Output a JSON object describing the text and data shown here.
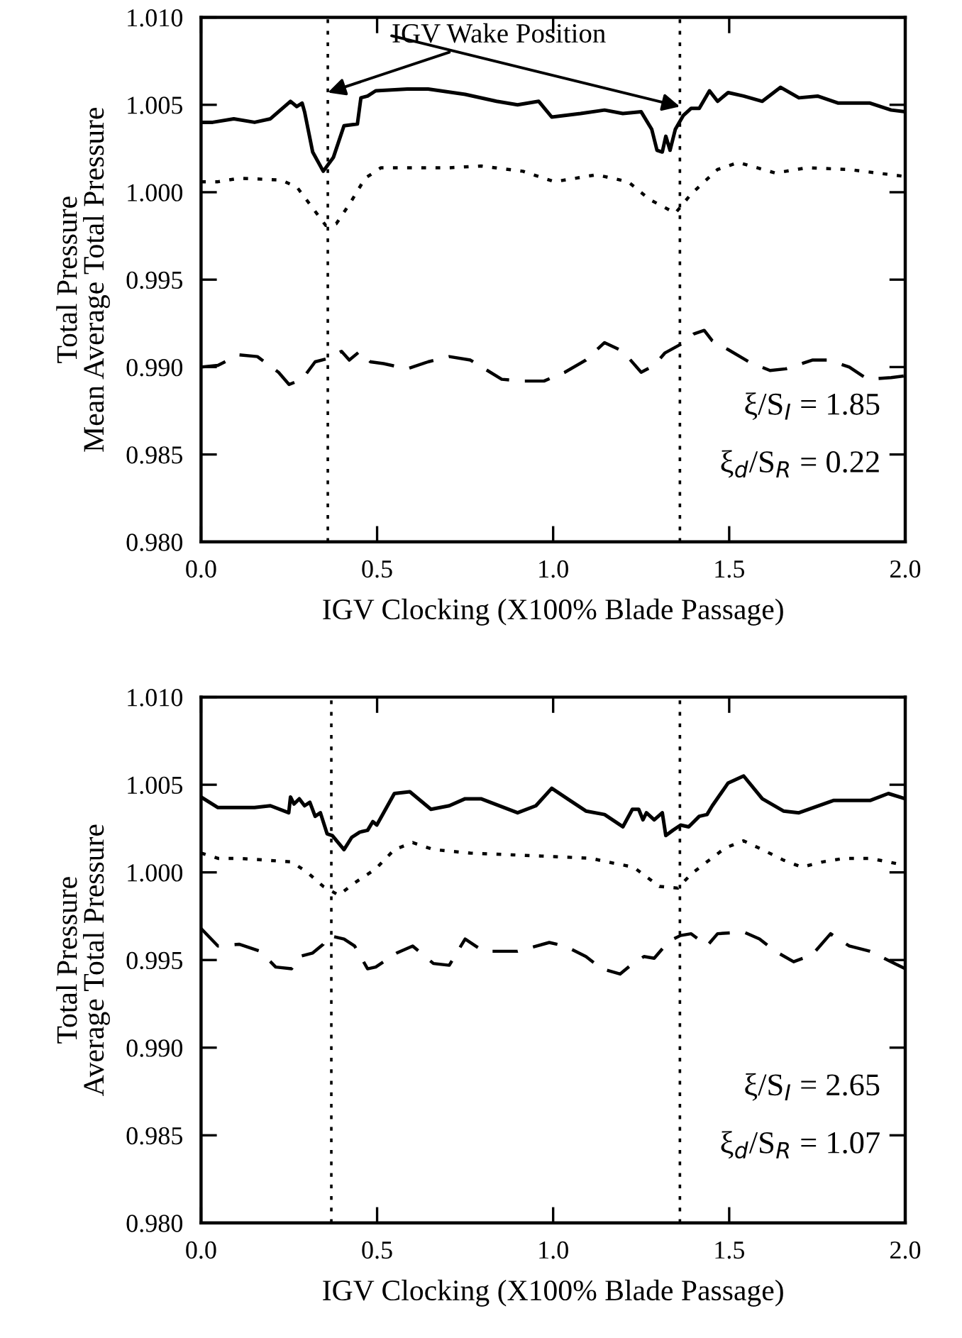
{
  "chart_data": [
    {
      "type": "line",
      "xlabel": "IGV Clocking (X100% Blade Passage)",
      "ylabel": "Total Pressure\nMean Average Total Pressure",
      "xlim": [
        0,
        2
      ],
      "ylim": [
        0.98,
        1.01
      ],
      "xticks": [
        {
          "value": 0,
          "label": "0.0"
        },
        {
          "value": 0.5,
          "label": "0.5"
        },
        {
          "value": 1,
          "label": "1.0"
        },
        {
          "value": 1.5,
          "label": "1.5"
        },
        {
          "value": 2,
          "label": "2.0"
        }
      ],
      "yticks": [
        {
          "value": 0.98,
          "label": "0.980"
        },
        {
          "value": 0.985,
          "label": "0.985"
        },
        {
          "value": 0.99,
          "label": "0.990"
        },
        {
          "value": 0.995,
          "label": "0.995"
        },
        {
          "value": 1.0,
          "label": "1.000"
        },
        {
          "value": 1.005,
          "label": "1.005"
        },
        {
          "value": 1.01,
          "label": "1.010"
        }
      ],
      "series": [
        {
          "color": "#000000",
          "line_style": "solid",
          "x": [
            0,
            0.033,
            0.093,
            0.152,
            0.197,
            0.254,
            0.272,
            0.287,
            0.294,
            0.317,
            0.347,
            0.376,
            0.406,
            0.444,
            0.454,
            0.473,
            0.496,
            0.586,
            0.645,
            0.75,
            0.839,
            0.899,
            0.959,
            0.996,
            1.078,
            1.146,
            1.198,
            1.25,
            1.28,
            1.295,
            1.31,
            1.32,
            1.332,
            1.347,
            1.37,
            1.392,
            1.415,
            1.444,
            1.467,
            1.497,
            1.541,
            1.594,
            1.646,
            1.698,
            1.751,
            1.81,
            1.9,
            1.96,
            2.0
          ],
          "values": [
            1.004,
            1.004,
            1.0042,
            1.004,
            1.0042,
            1.0052,
            1.0049,
            1.0051,
            1.0046,
            1.0023,
            1.0012,
            1.002,
            1.0038,
            1.0039,
            1.0054,
            1.0055,
            1.0058,
            1.0059,
            1.0059,
            1.0056,
            1.0052,
            1.005,
            1.0052,
            1.0043,
            1.0045,
            1.0047,
            1.0045,
            1.0046,
            1.0036,
            1.0024,
            1.0023,
            1.0032,
            1.0024,
            1.0036,
            1.0044,
            1.0048,
            1.0048,
            1.0058,
            1.0052,
            1.0057,
            1.0055,
            1.0052,
            1.006,
            1.0054,
            1.0055,
            1.0051,
            1.0051,
            1.0047,
            1.0046
          ]
        },
        {
          "color": "#000000",
          "line_style": "dotted",
          "x": [
            0,
            0.048,
            0.108,
            0.227,
            0.272,
            0.317,
            0.354,
            0.384,
            0.421,
            0.466,
            0.511,
            0.586,
            0.705,
            0.795,
            0.914,
            1.004,
            1.123,
            1.213,
            1.273,
            1.347,
            1.392,
            1.467,
            1.526,
            1.579,
            1.631,
            1.721,
            1.84,
            2.0
          ],
          "values": [
            1.0006,
            1.0006,
            1.0008,
            1.0007,
            1.0003,
            0.9991,
            0.9981,
            0.9982,
            0.9993,
            1.0008,
            1.0014,
            1.0014,
            1.0014,
            1.0015,
            1.0012,
            1.0006,
            1.001,
            1.0006,
            0.9996,
            0.9988,
            0.9999,
            1.0013,
            1.0017,
            1.0014,
            1.0011,
            1.0014,
            1.0013,
            1.0009
          ]
        },
        {
          "color": "#000000",
          "line_style": "dashed",
          "x": [
            0,
            0.048,
            0.108,
            0.16,
            0.22,
            0.25,
            0.287,
            0.324,
            0.362,
            0.399,
            0.421,
            0.451,
            0.481,
            0.518,
            0.586,
            0.645,
            0.705,
            0.765,
            0.854,
            0.914,
            0.974,
            1.033,
            1.093,
            1.146,
            1.198,
            1.25,
            1.287,
            1.317,
            1.362,
            1.4,
            1.429,
            1.452,
            1.497,
            1.556,
            1.616,
            1.661,
            1.736,
            1.781,
            1.841,
            1.893,
            1.96,
            2.0
          ],
          "values": [
            0.99,
            0.9901,
            0.9907,
            0.9906,
            0.9897,
            0.989,
            0.9893,
            0.9903,
            0.9905,
            0.9909,
            0.9904,
            0.9909,
            0.9903,
            0.9902,
            0.9899,
            0.9903,
            0.9906,
            0.9904,
            0.9893,
            0.9892,
            0.9892,
            0.9897,
            0.9904,
            0.9914,
            0.9909,
            0.9897,
            0.9901,
            0.9908,
            0.9913,
            0.9919,
            0.9921,
            0.9915,
            0.991,
            0.9903,
            0.9898,
            0.9899,
            0.9904,
            0.9904,
            0.99,
            0.9893,
            0.9894,
            0.9895
          ]
        }
      ],
      "ref_lines": [
        {
          "axis": "x",
          "value": 0.36,
          "line_style": "dotted",
          "color": "#000000"
        },
        {
          "axis": "x",
          "value": 1.36,
          "line_style": "dotted",
          "color": "#000000"
        }
      ],
      "annotations": [
        {
          "text": "IGV Wake Position",
          "x": 0.36,
          "y": 1.0057
        },
        "ξ/S$_{I}$ = 1.85",
        "ξ$_{d}$/S$_{R}$ = 0.22"
      ]
    },
    {
      "type": "line",
      "xlabel": "IGV Clocking (X100% Blade Passage)",
      "ylabel": "Total Pressure\nAverage Total Pressure",
      "xlim": [
        0,
        2
      ],
      "ylim": [
        0.98,
        1.01
      ],
      "xticks": [
        {
          "value": 0,
          "label": "0.0"
        },
        {
          "value": 0.5,
          "label": "0.5"
        },
        {
          "value": 1,
          "label": "1.0"
        },
        {
          "value": 1.5,
          "label": "1.5"
        },
        {
          "value": 2,
          "label": "2.0"
        }
      ],
      "yticks": [
        {
          "value": 0.98,
          "label": "0.980"
        },
        {
          "value": 0.985,
          "label": "0.985"
        },
        {
          "value": 0.99,
          "label": "0.990"
        },
        {
          "value": 0.995,
          "label": "0.995"
        },
        {
          "value": 1.0,
          "label": "1.000"
        },
        {
          "value": 1.005,
          "label": "1.005"
        },
        {
          "value": 1.01,
          "label": "1.010"
        }
      ],
      "series": [
        {
          "color": "#000000",
          "line_style": "solid",
          "x": [
            0,
            0.048,
            0.152,
            0.197,
            0.249,
            0.254,
            0.264,
            0.279,
            0.294,
            0.309,
            0.324,
            0.339,
            0.358,
            0.373,
            0.406,
            0.428,
            0.451,
            0.473,
            0.488,
            0.499,
            0.549,
            0.593,
            0.653,
            0.705,
            0.75,
            0.795,
            0.899,
            0.951,
            0.996,
            1.048,
            1.093,
            1.146,
            1.198,
            1.225,
            1.243,
            1.255,
            1.265,
            1.287,
            1.31,
            1.32,
            1.34,
            1.362,
            1.385,
            1.415,
            1.437,
            1.452,
            1.497,
            1.541,
            1.594,
            1.654,
            1.698,
            1.796,
            1.9,
            1.952,
            2.0
          ],
          "values": [
            1.0043,
            1.0037,
            1.0037,
            1.0038,
            1.0034,
            1.0043,
            1.0039,
            1.0042,
            1.0038,
            1.004,
            1.0032,
            1.0034,
            1.0022,
            1.0021,
            1.0013,
            1.002,
            1.0023,
            1.0024,
            1.0029,
            1.0027,
            1.0045,
            1.0046,
            1.0036,
            1.0038,
            1.0042,
            1.0042,
            1.0034,
            1.0038,
            1.0048,
            1.0041,
            1.0035,
            1.0033,
            1.0026,
            1.0036,
            1.0036,
            1.003,
            1.0034,
            1.003,
            1.0034,
            1.0021,
            1.0024,
            1.0027,
            1.0026,
            1.0032,
            1.0033,
            1.0038,
            1.0051,
            1.0055,
            1.0042,
            1.0035,
            1.0034,
            1.0041,
            1.0041,
            1.0045,
            1.0042
          ]
        },
        {
          "color": "#000000",
          "line_style": "dotted",
          "x": [
            0,
            0.048,
            0.108,
            0.257,
            0.302,
            0.347,
            0.391,
            0.436,
            0.496,
            0.549,
            0.601,
            0.66,
            0.765,
            0.884,
            1.004,
            1.108,
            1.153,
            1.228,
            1.302,
            1.354,
            1.392,
            1.437,
            1.489,
            1.541,
            1.594,
            1.654,
            1.706,
            1.766,
            1.826,
            1.9,
            2.0
          ],
          "values": [
            1.0011,
            1.0008,
            1.0008,
            1.0006,
            1.0,
            0.9992,
            0.9987,
            0.9994,
            1.0002,
            1.0013,
            1.0017,
            1.0013,
            1.0011,
            1.001,
            1.0009,
            1.0008,
            1.0006,
            1.0003,
            0.9992,
            0.9991,
            0.9999,
            1.0006,
            1.0014,
            1.0018,
            1.0013,
            1.0007,
            1.0003,
            1.0006,
            1.0008,
            1.0008,
            1.0004
          ]
        },
        {
          "color": "#000000",
          "line_style": "dashed",
          "x": [
            0,
            0.048,
            0.108,
            0.168,
            0.212,
            0.257,
            0.279,
            0.317,
            0.347,
            0.362,
            0.406,
            0.436,
            0.473,
            0.496,
            0.556,
            0.601,
            0.66,
            0.705,
            0.75,
            0.802,
            0.899,
            0.989,
            1.033,
            1.093,
            1.138,
            1.19,
            1.22,
            1.258,
            1.287,
            1.317,
            1.332,
            1.362,
            1.392,
            1.437,
            1.467,
            1.541,
            1.586,
            1.631,
            1.683,
            1.736,
            1.788,
            1.841,
            1.9,
            1.96,
            2.0
          ],
          "values": [
            0.9968,
            0.9958,
            0.9959,
            0.9955,
            0.9946,
            0.9945,
            0.9952,
            0.9954,
            0.9959,
            0.9964,
            0.9962,
            0.9958,
            0.9945,
            0.9946,
            0.9954,
            0.9958,
            0.9948,
            0.9947,
            0.9962,
            0.9955,
            0.9955,
            0.996,
            0.9958,
            0.9952,
            0.9945,
            0.9942,
            0.9947,
            0.9952,
            0.9951,
            0.9958,
            0.9961,
            0.9964,
            0.9965,
            0.9958,
            0.9965,
            0.9966,
            0.9962,
            0.9955,
            0.9949,
            0.9953,
            0.9965,
            0.9958,
            0.9955,
            0.9949,
            0.9945
          ]
        }
      ],
      "ref_lines": [
        {
          "axis": "x",
          "value": 0.37,
          "line_style": "dotted",
          "color": "#000000"
        },
        {
          "axis": "x",
          "value": 1.36,
          "line_style": "dotted",
          "color": "#000000"
        }
      ],
      "annotations": [
        "ξ/S$_{I}$ = 2.65",
        "ξ$_{d}$/S$_{R}$ = 1.07"
      ]
    }
  ]
}
